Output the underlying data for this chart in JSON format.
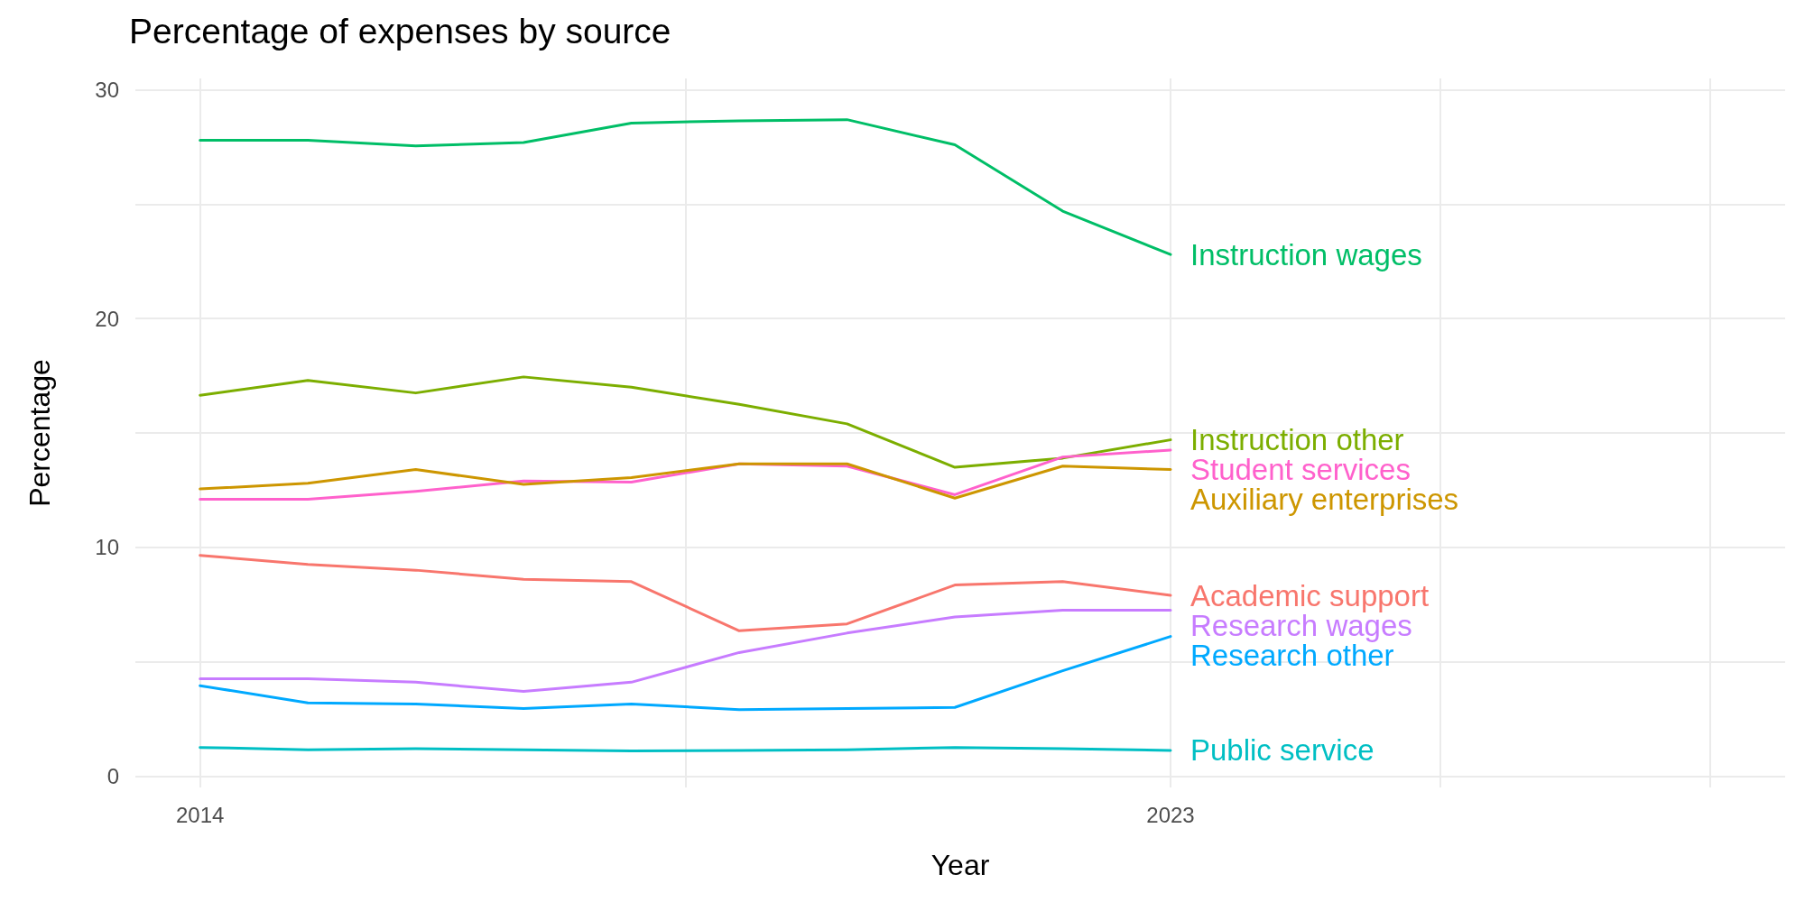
{
  "chart_data": {
    "type": "line",
    "title": "Percentage of expenses by source",
    "xlabel": "Year",
    "ylabel": "Percentage",
    "x": [
      2014,
      2015,
      2016,
      2017,
      2018,
      2019,
      2020,
      2021,
      2022,
      2023
    ],
    "series": [
      {
        "name": "Instruction wages",
        "color": "#00be67",
        "values": [
          27.8,
          27.8,
          27.55,
          27.7,
          28.55,
          28.65,
          28.7,
          27.6,
          24.7,
          22.8
        ]
      },
      {
        "name": "Instruction other",
        "color": "#7cae00",
        "values": [
          16.65,
          17.3,
          16.75,
          17.45,
          17.0,
          16.25,
          15.4,
          13.5,
          13.9,
          14.7
        ]
      },
      {
        "name": "Student services",
        "color": "#ff61cc",
        "values": [
          12.1,
          12.1,
          12.45,
          12.9,
          12.85,
          13.65,
          13.55,
          12.3,
          13.95,
          14.25
        ]
      },
      {
        "name": "Auxiliary enterprises",
        "color": "#cd9600",
        "values": [
          12.55,
          12.8,
          13.4,
          12.75,
          13.05,
          13.65,
          13.65,
          12.15,
          13.55,
          13.4
        ]
      },
      {
        "name": "Academic support",
        "color": "#f8766d",
        "values": [
          9.65,
          9.25,
          9.0,
          8.6,
          8.5,
          6.35,
          6.65,
          8.35,
          8.5,
          7.9
        ]
      },
      {
        "name": "Research wages",
        "color": "#c77cff",
        "values": [
          4.25,
          4.25,
          4.1,
          3.7,
          4.1,
          5.4,
          6.25,
          6.95,
          7.25,
          7.25
        ]
      },
      {
        "name": "Research other",
        "color": "#00a9ff",
        "values": [
          3.95,
          3.2,
          3.15,
          2.95,
          3.15,
          2.9,
          2.95,
          3.0,
          4.6,
          6.1
        ]
      },
      {
        "name": "Public service",
        "color": "#00bfc4",
        "values": [
          1.25,
          1.15,
          1.2,
          1.15,
          1.1,
          1.12,
          1.15,
          1.25,
          1.2,
          1.12
        ]
      }
    ],
    "xlim": [
      2013.4,
      2028.7
    ],
    "xticks": [
      2014,
      {
        "value": 2018.5,
        "label": null
      },
      2023,
      {
        "value": 2025.5,
        "label": null
      },
      {
        "value": 2028,
        "label": null
      }
    ],
    "ylim": [
      -0.5,
      30.5
    ],
    "yticks": [
      0,
      {
        "value": 5,
        "label": null
      },
      10,
      {
        "value": 15,
        "label": null
      },
      20,
      {
        "value": 25,
        "label": null
      },
      30
    ],
    "grid": true,
    "legend": false,
    "marker": "none",
    "line_style": "solid"
  }
}
